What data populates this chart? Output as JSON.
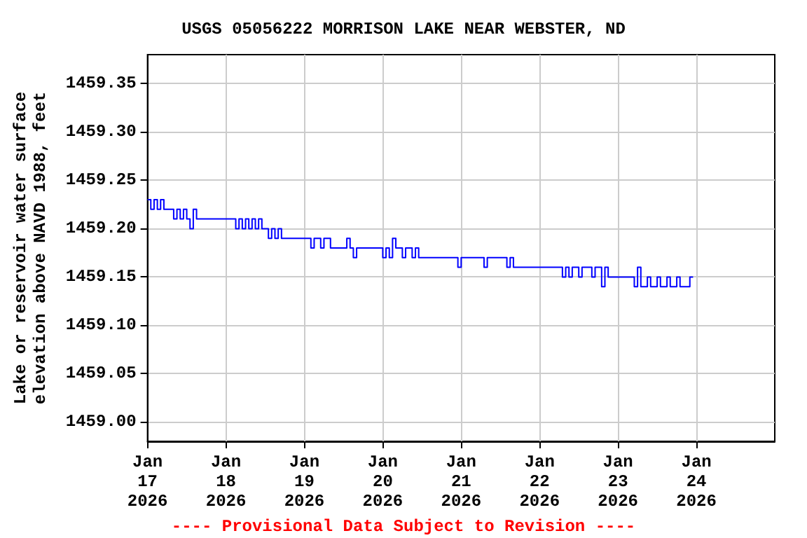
{
  "chart_data": {
    "type": "step",
    "title": "USGS 05056222 MORRISON LAKE NEAR WEBSTER, ND",
    "ylabel": "Lake or reservoir water surface\nelevation above NAVD 1988, feet",
    "annotations": [
      "---- Provisional Data Subject to Revision ----"
    ],
    "x": [
      "2026-01-17T00:00",
      "2026-01-17T01:00",
      "2026-01-17T02:00",
      "2026-01-17T03:00",
      "2026-01-17T04:00",
      "2026-01-17T05:00",
      "2026-01-17T08:00",
      "2026-01-17T09:00",
      "2026-01-17T10:00",
      "2026-01-17T11:00",
      "2026-01-17T12:00",
      "2026-01-17T13:00",
      "2026-01-17T14:00",
      "2026-01-17T15:00",
      "2026-01-18T03:00",
      "2026-01-18T04:00",
      "2026-01-18T05:00",
      "2026-01-18T06:00",
      "2026-01-18T07:00",
      "2026-01-18T08:00",
      "2026-01-18T09:00",
      "2026-01-18T10:00",
      "2026-01-18T11:00",
      "2026-01-18T13:00",
      "2026-01-18T14:00",
      "2026-01-18T15:00",
      "2026-01-18T16:00",
      "2026-01-18T17:00",
      "2026-01-19T02:00",
      "2026-01-19T03:00",
      "2026-01-19T05:00",
      "2026-01-19T06:00",
      "2026-01-19T08:00",
      "2026-01-19T13:00",
      "2026-01-19T14:00",
      "2026-01-19T15:00",
      "2026-01-19T16:00",
      "2026-01-20T00:00",
      "2026-01-20T01:00",
      "2026-01-20T02:00",
      "2026-01-20T03:00",
      "2026-01-20T04:00",
      "2026-01-20T06:00",
      "2026-01-20T07:00",
      "2026-01-20T09:00",
      "2026-01-20T10:00",
      "2026-01-20T11:00",
      "2026-01-20T23:00",
      "2026-01-21T00:00",
      "2026-01-21T07:00",
      "2026-01-21T08:00",
      "2026-01-21T14:00",
      "2026-01-21T15:00",
      "2026-01-21T16:00",
      "2026-01-22T07:00",
      "2026-01-22T08:00",
      "2026-01-22T09:00",
      "2026-01-22T10:00",
      "2026-01-22T12:00",
      "2026-01-22T13:00",
      "2026-01-22T16:00",
      "2026-01-22T17:00",
      "2026-01-22T19:00",
      "2026-01-22T20:00",
      "2026-01-22T21:00",
      "2026-01-23T05:00",
      "2026-01-23T06:00",
      "2026-01-23T07:00",
      "2026-01-23T09:00",
      "2026-01-23T10:00",
      "2026-01-23T12:00",
      "2026-01-23T13:00",
      "2026-01-23T15:00",
      "2026-01-23T16:00",
      "2026-01-23T18:00",
      "2026-01-23T19:00",
      "2026-01-23T22:00",
      "2026-01-23T23:00"
    ],
    "series": [
      {
        "color": "#0000ff",
        "values": [
          1459.23,
          1459.22,
          1459.23,
          1459.22,
          1459.23,
          1459.22,
          1459.21,
          1459.22,
          1459.21,
          1459.22,
          1459.21,
          1459.2,
          1459.22,
          1459.21,
          1459.2,
          1459.21,
          1459.2,
          1459.21,
          1459.2,
          1459.21,
          1459.2,
          1459.21,
          1459.2,
          1459.19,
          1459.2,
          1459.19,
          1459.2,
          1459.19,
          1459.18,
          1459.19,
          1459.18,
          1459.19,
          1459.18,
          1459.19,
          1459.18,
          1459.17,
          1459.18,
          1459.17,
          1459.18,
          1459.17,
          1459.19,
          1459.18,
          1459.17,
          1459.18,
          1459.17,
          1459.18,
          1459.17,
          1459.16,
          1459.17,
          1459.16,
          1459.17,
          1459.16,
          1459.17,
          1459.16,
          1459.15,
          1459.16,
          1459.15,
          1459.16,
          1459.15,
          1459.16,
          1459.15,
          1459.16,
          1459.14,
          1459.16,
          1459.15,
          1459.14,
          1459.16,
          1459.14,
          1459.15,
          1459.14,
          1459.15,
          1459.14,
          1459.15,
          1459.14,
          1459.15,
          1459.14,
          1459.15,
          1459.15
        ]
      }
    ],
    "xlim": [
      "2026-01-17",
      "2026-01-25"
    ],
    "xticks": [
      {
        "value": "2026-01-17",
        "label": "Jan\n17\n2026"
      },
      {
        "value": "2026-01-18",
        "label": "Jan\n18\n2026"
      },
      {
        "value": "2026-01-19",
        "label": "Jan\n19\n2026"
      },
      {
        "value": "2026-01-20",
        "label": "Jan\n20\n2026"
      },
      {
        "value": "2026-01-21",
        "label": "Jan\n21\n2026"
      },
      {
        "value": "2026-01-22",
        "label": "Jan\n22\n2026"
      },
      {
        "value": "2026-01-23",
        "label": "Jan\n23\n2026"
      },
      {
        "value": "2026-01-24",
        "label": "Jan\n24\n2026"
      }
    ],
    "ylim": [
      1458.98,
      1459.38
    ],
    "yticks": [
      {
        "value": 1459.0,
        "label": "1459.00"
      },
      {
        "value": 1459.05,
        "label": "1459.05"
      },
      {
        "value": 1459.1,
        "label": "1459.10"
      },
      {
        "value": 1459.15,
        "label": "1459.15"
      },
      {
        "value": 1459.2,
        "label": "1459.20"
      },
      {
        "value": 1459.25,
        "label": "1459.25"
      },
      {
        "value": 1459.3,
        "label": "1459.30"
      },
      {
        "value": 1459.35,
        "label": "1459.35"
      }
    ],
    "grid": true,
    "marker": "none",
    "line_style": "solid"
  }
}
